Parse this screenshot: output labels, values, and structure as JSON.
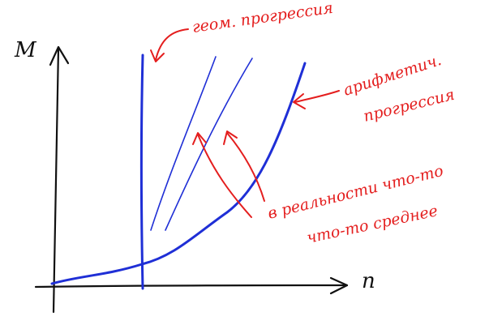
{
  "axes": {
    "y_label": "M",
    "x_label": "n"
  },
  "annotations": {
    "geometric": "геом. прогрессия",
    "arithmetic_line1": "арифметич.",
    "arithmetic_line2": "прогрессия",
    "reality_line1": "в реальности что-то",
    "reality_line2": "что-то среднее"
  },
  "colors": {
    "axes": "#111111",
    "curves": "#1f2fd6",
    "annotations": "#e41e1e"
  }
}
